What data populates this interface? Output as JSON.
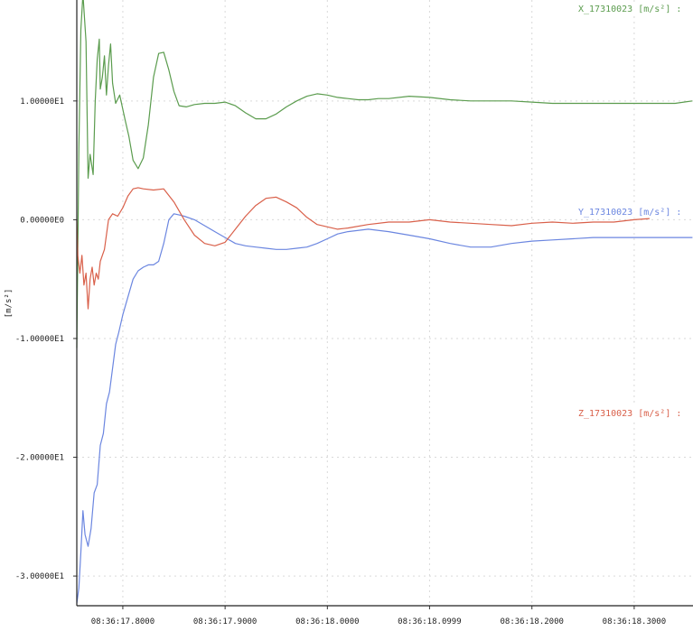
{
  "chart_data": {
    "type": "line",
    "ylabel": "[m/s²]",
    "ylim": [
      -32.5,
      18.5
    ],
    "yticks": [
      10,
      0,
      -10,
      -20,
      -30
    ],
    "ytick_labels": [
      "1.00000E1",
      "0.00000E0",
      "-1.00000E1",
      "-2.00000E1",
      "-3.00000E1"
    ],
    "xlim": [
      17.755,
      18.3575
    ],
    "xticks": [
      17.8,
      17.9,
      18.0,
      18.0999,
      18.2,
      18.3
    ],
    "xtick_labels": [
      "08:36:17.8000",
      "08:36:17.9000",
      "08:36:18.0000",
      "08:36:18.0999",
      "08:36:18.2000",
      "08:36:18.3000"
    ],
    "grid": true,
    "legend_position": "right",
    "series": [
      {
        "name": "X_17310023 [m/s²] :",
        "color": "#5b9c4e",
        "x": [
          17.755,
          17.757,
          17.759,
          17.761,
          17.764,
          17.766,
          17.768,
          17.771,
          17.773,
          17.775,
          17.777,
          17.778,
          17.78,
          17.782,
          17.784,
          17.786,
          17.788,
          17.79,
          17.793,
          17.797,
          17.802,
          17.806,
          17.81,
          17.815,
          17.82,
          17.825,
          17.83,
          17.835,
          17.84,
          17.845,
          17.85,
          17.855,
          17.862,
          17.87,
          17.88,
          17.89,
          17.9,
          17.91,
          17.92,
          17.93,
          17.94,
          17.95,
          17.96,
          17.97,
          17.98,
          17.99,
          18.0,
          18.01,
          18.02,
          18.03,
          18.04,
          18.05,
          18.06,
          18.08,
          18.1,
          18.12,
          18.14,
          18.16,
          18.18,
          18.2,
          18.22,
          18.24,
          18.26,
          18.28,
          18.3,
          18.32,
          18.34,
          18.357
        ],
        "y": [
          -10.8,
          6.0,
          16.0,
          19.0,
          15.0,
          3.5,
          5.5,
          3.8,
          10.0,
          13.5,
          15.2,
          11.0,
          12.0,
          13.8,
          10.5,
          13.0,
          14.8,
          11.5,
          9.8,
          10.5,
          8.5,
          7.0,
          5.0,
          4.3,
          5.2,
          8.0,
          12.0,
          14.0,
          14.1,
          12.6,
          10.8,
          9.6,
          9.5,
          9.7,
          9.8,
          9.8,
          9.9,
          9.6,
          9.0,
          8.5,
          8.5,
          8.9,
          9.5,
          10.0,
          10.4,
          10.6,
          10.5,
          10.3,
          10.2,
          10.1,
          10.1,
          10.2,
          10.2,
          10.4,
          10.3,
          10.1,
          10.0,
          10.0,
          10.0,
          9.9,
          9.8,
          9.8,
          9.8,
          9.8,
          9.8,
          9.8,
          9.8,
          10.0
        ]
      },
      {
        "name": "Y_17310023 [m/s²] :",
        "color": "#6b86e0",
        "x": [
          17.755,
          17.757,
          17.759,
          17.761,
          17.763,
          17.766,
          17.769,
          17.772,
          17.775,
          17.778,
          17.781,
          17.784,
          17.787,
          17.79,
          17.793,
          17.796,
          17.8,
          17.805,
          17.81,
          17.815,
          17.82,
          17.825,
          17.83,
          17.835,
          17.84,
          17.845,
          17.85,
          17.855,
          17.86,
          17.87,
          17.88,
          17.89,
          17.9,
          17.91,
          17.92,
          17.93,
          17.94,
          17.95,
          17.96,
          17.97,
          17.98,
          17.99,
          18.0,
          18.01,
          18.02,
          18.04,
          18.06,
          18.08,
          18.1,
          18.12,
          18.14,
          18.16,
          18.18,
          18.2,
          18.22,
          18.24,
          18.26,
          18.28,
          18.3,
          18.32,
          18.34,
          18.357
        ],
        "y": [
          -32.3,
          -31.0,
          -28.0,
          -24.5,
          -26.5,
          -27.5,
          -26.0,
          -23.0,
          -22.3,
          -19.0,
          -18.0,
          -15.5,
          -14.5,
          -12.5,
          -10.5,
          -9.5,
          -8.0,
          -6.5,
          -5.0,
          -4.3,
          -4.0,
          -3.8,
          -3.8,
          -3.5,
          -2.0,
          0.0,
          0.5,
          0.4,
          0.3,
          0.0,
          -0.5,
          -1.0,
          -1.5,
          -2.0,
          -2.2,
          -2.3,
          -2.4,
          -2.5,
          -2.5,
          -2.4,
          -2.3,
          -2.0,
          -1.6,
          -1.2,
          -1.0,
          -0.8,
          -1.0,
          -1.3,
          -1.6,
          -2.0,
          -2.3,
          -2.3,
          -2.0,
          -1.8,
          -1.7,
          -1.6,
          -1.5,
          -1.5,
          -1.5,
          -1.5,
          -1.5,
          -1.5
        ]
      },
      {
        "name": "Z_17310023 [m/s²] :",
        "color": "#d9604a",
        "x": [
          17.755,
          17.756,
          17.758,
          17.76,
          17.762,
          17.764,
          17.766,
          17.768,
          17.77,
          17.772,
          17.774,
          17.776,
          17.778,
          17.782,
          17.786,
          17.79,
          17.795,
          17.8,
          17.805,
          17.81,
          17.815,
          17.82,
          17.83,
          17.84,
          17.85,
          17.86,
          17.87,
          17.88,
          17.89,
          17.9,
          17.91,
          17.92,
          17.93,
          17.94,
          17.95,
          17.96,
          17.97,
          17.98,
          17.99,
          18.0,
          18.01,
          18.02,
          18.04,
          18.06,
          18.08,
          18.1,
          18.12,
          18.14,
          18.16,
          18.18,
          18.2,
          18.22,
          18.24,
          18.26,
          18.28,
          18.3,
          18.315
        ],
        "y": [
          0.0,
          -3.0,
          -4.5,
          -3.0,
          -5.5,
          -4.5,
          -7.5,
          -5.0,
          -4.0,
          -5.5,
          -4.5,
          -5.0,
          -3.5,
          -2.5,
          0.0,
          0.5,
          0.3,
          1.0,
          2.0,
          2.6,
          2.7,
          2.6,
          2.5,
          2.6,
          1.5,
          0.0,
          -1.3,
          -2.0,
          -2.2,
          -1.9,
          -0.8,
          0.3,
          1.2,
          1.8,
          1.9,
          1.5,
          1.0,
          0.2,
          -0.4,
          -0.6,
          -0.8,
          -0.7,
          -0.4,
          -0.2,
          -0.2,
          0.0,
          -0.2,
          -0.3,
          -0.4,
          -0.5,
          -0.3,
          -0.2,
          -0.3,
          -0.2,
          -0.2,
          0.0,
          0.1
        ]
      }
    ]
  }
}
